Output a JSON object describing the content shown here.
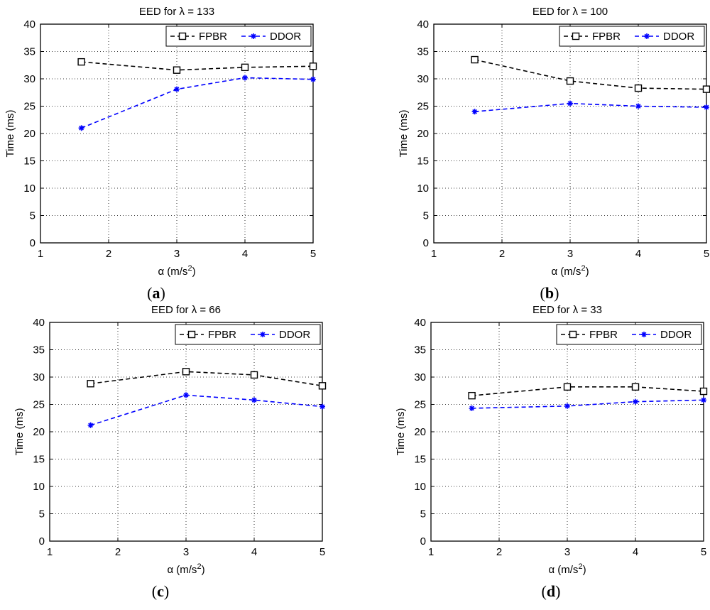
{
  "chart_data": [
    {
      "type": "line",
      "title": "EED for λ = 133",
      "xlabel": "α (m/s²)",
      "ylabel": "Time (ms)",
      "xlim": [
        1,
        5
      ],
      "ylim": [
        0,
        40
      ],
      "xticks": [
        1,
        2,
        3,
        4,
        5
      ],
      "yticks": [
        0,
        5,
        10,
        15,
        20,
        25,
        30,
        35,
        40
      ],
      "grid": true,
      "legend_position": "top-right",
      "x": [
        1.6,
        3,
        4,
        5
      ],
      "series": [
        {
          "name": "FPBR",
          "color": "#000000",
          "marker": "square",
          "values": [
            33.1,
            31.6,
            32.1,
            32.3
          ]
        },
        {
          "name": "DDOR",
          "color": "#0000ff",
          "marker": "star",
          "values": [
            21.0,
            28.1,
            30.2,
            29.9
          ]
        }
      ],
      "caption": "a"
    },
    {
      "type": "line",
      "title": "EED for λ = 100",
      "xlabel": "α (m/s²)",
      "ylabel": "Time (ms)",
      "xlim": [
        1,
        5
      ],
      "ylim": [
        0,
        40
      ],
      "xticks": [
        1,
        2,
        3,
        4,
        5
      ],
      "yticks": [
        0,
        5,
        10,
        15,
        20,
        25,
        30,
        35,
        40
      ],
      "grid": true,
      "legend_position": "top-right",
      "x": [
        1.6,
        3,
        4,
        5
      ],
      "series": [
        {
          "name": "FPBR",
          "color": "#000000",
          "marker": "square",
          "values": [
            33.5,
            29.6,
            28.3,
            28.1
          ]
        },
        {
          "name": "DDOR",
          "color": "#0000ff",
          "marker": "star",
          "values": [
            24.0,
            25.5,
            25.0,
            24.8
          ]
        }
      ],
      "caption": "b"
    },
    {
      "type": "line",
      "title": "EED for λ = 66",
      "xlabel": "α (m/s²)",
      "ylabel": "Time (ms)",
      "xlim": [
        1,
        5
      ],
      "ylim": [
        0,
        40
      ],
      "xticks": [
        1,
        2,
        3,
        4,
        5
      ],
      "yticks": [
        0,
        5,
        10,
        15,
        20,
        25,
        30,
        35,
        40
      ],
      "grid": true,
      "legend_position": "top-right",
      "x": [
        1.6,
        3,
        4,
        5
      ],
      "series": [
        {
          "name": "FPBR",
          "color": "#000000",
          "marker": "square",
          "values": [
            28.8,
            31.0,
            30.4,
            28.4
          ]
        },
        {
          "name": "DDOR",
          "color": "#0000ff",
          "marker": "star",
          "values": [
            21.2,
            26.7,
            25.8,
            24.6
          ]
        }
      ],
      "caption": "c"
    },
    {
      "type": "line",
      "title": "EED for λ = 33",
      "xlabel": "α (m/s²)",
      "ylabel": "Time (ms)",
      "xlim": [
        1,
        5
      ],
      "ylim": [
        0,
        40
      ],
      "xticks": [
        1,
        2,
        3,
        4,
        5
      ],
      "yticks": [
        0,
        5,
        10,
        15,
        20,
        25,
        30,
        35,
        40
      ],
      "grid": true,
      "legend_position": "top-right",
      "x": [
        1.6,
        3,
        4,
        5
      ],
      "series": [
        {
          "name": "FPBR",
          "color": "#000000",
          "marker": "square",
          "values": [
            26.6,
            28.2,
            28.2,
            27.4
          ]
        },
        {
          "name": "DDOR",
          "color": "#0000ff",
          "marker": "star",
          "values": [
            24.3,
            24.7,
            25.5,
            25.8
          ]
        }
      ],
      "caption": "d"
    }
  ]
}
